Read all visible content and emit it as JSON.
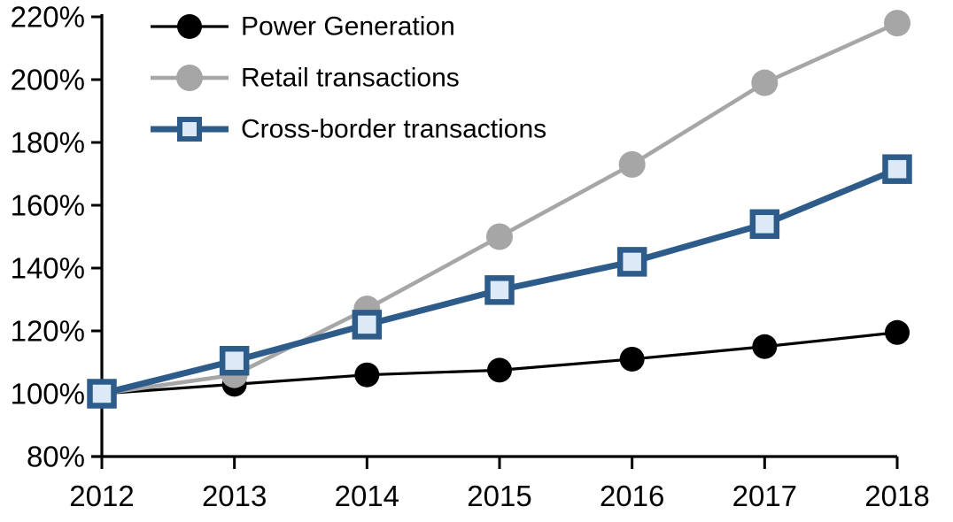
{
  "chart_data": {
    "type": "line",
    "title": "",
    "xlabel": "",
    "ylabel": "",
    "x": [
      2012,
      2013,
      2014,
      2015,
      2016,
      2017,
      2018
    ],
    "x_tick_labels": [
      "2012",
      "2013",
      "2014",
      "2015",
      "2016",
      "2017",
      "2018"
    ],
    "ylim": [
      80,
      220
    ],
    "ytick_step": 20,
    "y_tick_labels": [
      "80%",
      "100%",
      "120%",
      "140%",
      "160%",
      "180%",
      "200%",
      "220%"
    ],
    "y_tick_values": [
      80,
      100,
      120,
      140,
      160,
      180,
      200,
      220
    ],
    "grid": false,
    "legend_position": "top-left-inside",
    "axis_color": "#000000",
    "background_color": "#ffffff",
    "series": [
      {
        "name": "Power Generation",
        "color": "#000000",
        "marker": "circle",
        "marker_fill": "#000000",
        "marker_radius": 14,
        "line_width": 3.2,
        "values": [
          100,
          103,
          106,
          107.5,
          111,
          115,
          119.5
        ]
      },
      {
        "name": "Retail transactions",
        "color": "#a6a6a6",
        "marker": "circle",
        "marker_fill": "#a6a6a6",
        "marker_radius": 15,
        "line_width": 4.5,
        "values": [
          100,
          106,
          127,
          150,
          173,
          199,
          218
        ]
      },
      {
        "name": "Cross-border transactions",
        "color": "#2e5c8a",
        "marker": "square",
        "marker_fill": "#dce9f6",
        "marker_size": 27,
        "marker_stroke_width": 6.5,
        "line_width": 7,
        "values": [
          100,
          110.5,
          122,
          133,
          142,
          154,
          171.5
        ]
      }
    ]
  }
}
